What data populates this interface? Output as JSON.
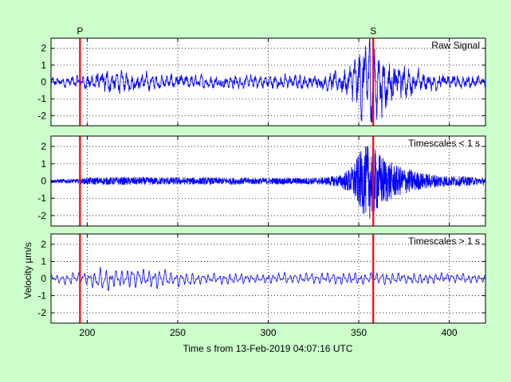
{
  "chart_data": {
    "type": "line",
    "xlabel": "Time s from 13-Feb-2019 04:07:16 UTC",
    "ylabel": "Velocity µm/s",
    "xlim": [
      180,
      420
    ],
    "xticks": [
      200,
      250,
      300,
      350,
      400
    ],
    "ylim": [
      -2.6,
      2.6
    ],
    "yticks": [
      -2,
      -1,
      0,
      1,
      2
    ],
    "grid": true,
    "colors": {
      "trace": "#0000ff",
      "marker": "#ff0000",
      "background": "#ccffcc",
      "axes_bg": "#ffffff"
    },
    "phase_markers": [
      {
        "label": "P",
        "x": 196
      },
      {
        "label": "S",
        "x": 358
      }
    ],
    "panels": [
      {
        "name": "Raw Signal",
        "envelope": [
          [
            180,
            0.22
          ],
          [
            190,
            0.28
          ],
          [
            195,
            0.32
          ],
          [
            200,
            0.4
          ],
          [
            210,
            0.55
          ],
          [
            220,
            0.48
          ],
          [
            230,
            0.42
          ],
          [
            240,
            0.38
          ],
          [
            260,
            0.32
          ],
          [
            280,
            0.32
          ],
          [
            300,
            0.33
          ],
          [
            320,
            0.34
          ],
          [
            330,
            0.38
          ],
          [
            340,
            0.6
          ],
          [
            348,
            1.2
          ],
          [
            352,
            2.0
          ],
          [
            356,
            2.2
          ],
          [
            362,
            1.6
          ],
          [
            370,
            1.0
          ],
          [
            380,
            0.6
          ],
          [
            395,
            0.4
          ],
          [
            420,
            0.3
          ]
        ]
      },
      {
        "name": "Timescales < 1 s",
        "envelope": [
          [
            180,
            0.1
          ],
          [
            196,
            0.12
          ],
          [
            200,
            0.2
          ],
          [
            220,
            0.22
          ],
          [
            260,
            0.2
          ],
          [
            300,
            0.18
          ],
          [
            330,
            0.2
          ],
          [
            340,
            0.35
          ],
          [
            346,
            0.8
          ],
          [
            352,
            1.8
          ],
          [
            356,
            2.1
          ],
          [
            362,
            1.5
          ],
          [
            370,
            0.9
          ],
          [
            385,
            0.45
          ],
          [
            400,
            0.3
          ],
          [
            420,
            0.2
          ]
        ]
      },
      {
        "name": "Timescales > 1 s",
        "envelope": [
          [
            180,
            0.15
          ],
          [
            200,
            0.3
          ],
          [
            210,
            0.5
          ],
          [
            220,
            0.45
          ],
          [
            240,
            0.4
          ],
          [
            260,
            0.25
          ],
          [
            300,
            0.2
          ],
          [
            340,
            0.25
          ],
          [
            360,
            0.25
          ],
          [
            380,
            0.25
          ],
          [
            420,
            0.2
          ]
        ]
      }
    ]
  }
}
